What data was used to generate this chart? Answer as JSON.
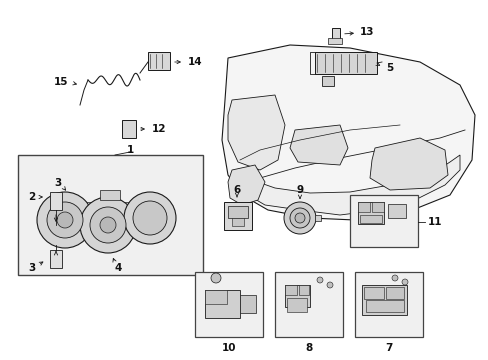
{
  "background_color": "#ffffff",
  "fig_width": 4.89,
  "fig_height": 3.6,
  "dpi": 100,
  "line_color": "#1a1a1a",
  "label_fontsize": 7.5,
  "label_fontweight": "bold",
  "label_color": "#111111"
}
